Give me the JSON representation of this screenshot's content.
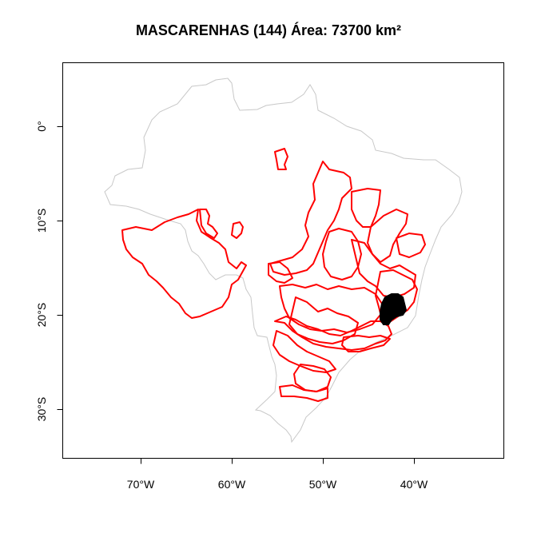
{
  "title": "MASCARENHAS (144) Área: 73700 km²",
  "map": {
    "x_ticks": [
      "70°W",
      "60°W",
      "50°W",
      "40°W"
    ],
    "y_ticks": [
      "0°",
      "10°S",
      "20°S",
      "30°S"
    ],
    "colors": {
      "country_outline": "#c8c8c8",
      "regions_outline": "#ff0000",
      "highlight_fill": "#000000",
      "frame": "#000000"
    }
  }
}
